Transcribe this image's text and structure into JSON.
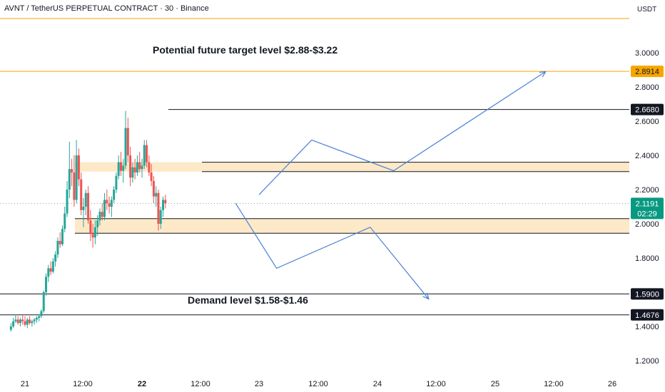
{
  "header": {
    "title": "AVNT / TetherUS PERPETUAL CONTRACT · 30 · Binance",
    "currency": "USDT"
  },
  "annotations": {
    "target": "Potential future target level  $2.88-$3.22",
    "demand": "Demand level $1.58-$1.46"
  },
  "colors": {
    "up": "#26a69a",
    "down": "#ef5350",
    "zone_fill": "#fde9c8",
    "path": "#4a7fd4",
    "orange_line": "#f7a600",
    "price_badge": "#089981",
    "level_badge": "#131722",
    "orange_badge": "#f7a600"
  },
  "chart_data": {
    "type": "candlestick",
    "y_ticks": [
      "3.0000",
      "2.8000",
      "2.6000",
      "2.4000",
      "2.2000",
      "2.0000",
      "1.8000",
      "1.4000",
      "1.2000"
    ],
    "ylim": [
      1.12,
      3.21
    ],
    "x_ticks": [
      {
        "label": "21",
        "bold": false
      },
      {
        "label": "12:00",
        "bold": false
      },
      {
        "label": "22",
        "bold": true
      },
      {
        "label": "12:00",
        "bold": false
      },
      {
        "label": "23",
        "bold": false
      },
      {
        "label": "12:00",
        "bold": false
      },
      {
        "label": "24",
        "bold": false
      },
      {
        "label": "12:00",
        "bold": false
      },
      {
        "label": "25",
        "bold": false
      },
      {
        "label": "12:00",
        "bold": false
      },
      {
        "label": "26",
        "bold": false
      }
    ],
    "levels": [
      {
        "value": 3.2,
        "label": "3.2000",
        "kind": "orange"
      },
      {
        "value": 2.8914,
        "label": "2.8914",
        "kind": "orange"
      },
      {
        "value": 2.668,
        "label": "2.6680",
        "kind": "black"
      },
      {
        "value": 1.59,
        "label": "1.5900",
        "kind": "black"
      },
      {
        "value": 1.4676,
        "label": "1.4676",
        "kind": "black"
      }
    ],
    "zones": [
      {
        "top": 2.36,
        "bottom": 2.305
      },
      {
        "top": 2.03,
        "bottom": 1.945
      }
    ],
    "last_price": {
      "value": 2.1191,
      "label": "2.1191",
      "countdown": "02:29"
    },
    "projection_paths": [
      [
        [
          23.0,
          2.17
        ],
        [
          23.45,
          2.49
        ],
        [
          24.15,
          2.31
        ],
        [
          25.45,
          2.89
        ]
      ],
      [
        [
          22.8,
          2.12
        ],
        [
          23.15,
          1.74
        ],
        [
          23.95,
          1.98
        ],
        [
          24.45,
          1.56
        ]
      ]
    ],
    "candles": [
      [
        20.88,
        1.38,
        1.42,
        1.37,
        1.4
      ],
      [
        20.9,
        1.4,
        1.45,
        1.39,
        1.43
      ],
      [
        20.92,
        1.43,
        1.47,
        1.42,
        1.44
      ],
      [
        20.94,
        1.44,
        1.46,
        1.41,
        1.42
      ],
      [
        20.96,
        1.42,
        1.45,
        1.4,
        1.44
      ],
      [
        20.98,
        1.44,
        1.47,
        1.41,
        1.43
      ],
      [
        21.0,
        1.43,
        1.46,
        1.4,
        1.41
      ],
      [
        21.02,
        1.41,
        1.45,
        1.39,
        1.44
      ],
      [
        21.04,
        1.44,
        1.46,
        1.41,
        1.42
      ],
      [
        21.06,
        1.42,
        1.44,
        1.4,
        1.43
      ],
      [
        21.08,
        1.43,
        1.45,
        1.41,
        1.44
      ],
      [
        21.1,
        1.44,
        1.46,
        1.42,
        1.45
      ],
      [
        21.12,
        1.45,
        1.47,
        1.43,
        1.46
      ],
      [
        21.14,
        1.46,
        1.5,
        1.45,
        1.49
      ],
      [
        21.16,
        1.49,
        1.61,
        1.48,
        1.6
      ],
      [
        21.18,
        1.6,
        1.71,
        1.58,
        1.69
      ],
      [
        21.2,
        1.69,
        1.76,
        1.66,
        1.74
      ],
      [
        21.22,
        1.74,
        1.78,
        1.7,
        1.72
      ],
      [
        21.24,
        1.72,
        1.8,
        1.71,
        1.78
      ],
      [
        21.26,
        1.78,
        1.84,
        1.75,
        1.82
      ],
      [
        21.28,
        1.82,
        1.92,
        1.8,
        1.9
      ],
      [
        21.3,
        1.9,
        1.95,
        1.86,
        1.88
      ],
      [
        21.32,
        1.88,
        1.99,
        1.87,
        1.97
      ],
      [
        21.34,
        1.97,
        2.1,
        1.95,
        2.06
      ],
      [
        21.36,
        2.06,
        2.25,
        2.04,
        2.2
      ],
      [
        21.38,
        2.2,
        2.48,
        2.15,
        2.32
      ],
      [
        21.4,
        2.32,
        2.38,
        2.22,
        2.3
      ],
      [
        21.42,
        2.3,
        2.4,
        2.1,
        2.14
      ],
      [
        21.44,
        2.14,
        2.49,
        2.12,
        2.4
      ],
      [
        21.46,
        2.4,
        2.44,
        2.22,
        2.26
      ],
      [
        21.48,
        2.26,
        2.3,
        2.05,
        2.08
      ],
      [
        21.5,
        2.08,
        2.15,
        1.98,
        2.1
      ],
      [
        21.52,
        2.1,
        2.2,
        2.05,
        2.18
      ],
      [
        21.54,
        2.18,
        2.22,
        2.0,
        2.02
      ],
      [
        21.56,
        2.02,
        2.08,
        1.9,
        1.94
      ],
      [
        21.58,
        1.94,
        2.0,
        1.86,
        1.92
      ],
      [
        21.6,
        1.92,
        2.02,
        1.88,
        1.98
      ],
      [
        21.62,
        1.98,
        2.05,
        1.93,
        2.02
      ],
      [
        21.64,
        2.02,
        2.09,
        1.99,
        2.07
      ],
      [
        21.66,
        2.07,
        2.12,
        2.02,
        2.04
      ],
      [
        21.68,
        2.04,
        2.18,
        2.02,
        2.14
      ],
      [
        21.7,
        2.14,
        2.2,
        2.08,
        2.12
      ],
      [
        21.72,
        2.12,
        2.16,
        2.06,
        2.1
      ],
      [
        21.74,
        2.1,
        2.16,
        2.04,
        2.14
      ],
      [
        21.76,
        2.14,
        2.22,
        2.12,
        2.2
      ],
      [
        21.78,
        2.2,
        2.3,
        2.18,
        2.28
      ],
      [
        21.8,
        2.28,
        2.4,
        2.26,
        2.36
      ],
      [
        21.82,
        2.36,
        2.42,
        2.28,
        2.31
      ],
      [
        21.84,
        2.31,
        2.38,
        2.24,
        2.34
      ],
      [
        21.86,
        2.34,
        2.66,
        2.32,
        2.56
      ],
      [
        21.88,
        2.56,
        2.62,
        2.36,
        2.4
      ],
      [
        21.9,
        2.4,
        2.45,
        2.22,
        2.27
      ],
      [
        21.92,
        2.27,
        2.36,
        2.24,
        2.33
      ],
      [
        21.94,
        2.33,
        2.38,
        2.26,
        2.3
      ],
      [
        21.96,
        2.3,
        2.4,
        2.28,
        2.36
      ],
      [
        21.98,
        2.36,
        2.42,
        2.3,
        2.32
      ],
      [
        22.0,
        2.32,
        2.38,
        2.27,
        2.34
      ],
      [
        22.02,
        2.34,
        2.49,
        2.32,
        2.46
      ],
      [
        22.04,
        2.46,
        2.49,
        2.33,
        2.36
      ],
      [
        22.06,
        2.36,
        2.4,
        2.28,
        2.3
      ],
      [
        22.08,
        2.3,
        2.35,
        2.22,
        2.25
      ],
      [
        22.1,
        2.25,
        2.28,
        2.12,
        2.16
      ],
      [
        22.12,
        2.16,
        2.22,
        2.1,
        2.18
      ],
      [
        22.14,
        2.18,
        2.2,
        1.96,
        2.0
      ],
      [
        22.16,
        2.0,
        2.1,
        1.97,
        2.08
      ],
      [
        22.18,
        2.08,
        2.16,
        2.04,
        2.14
      ],
      [
        22.2,
        2.14,
        2.17,
        2.09,
        2.12
      ]
    ]
  }
}
